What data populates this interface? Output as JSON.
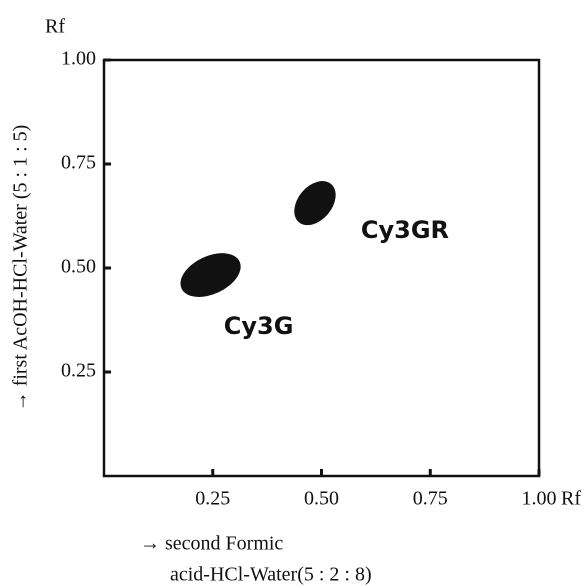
{
  "chart_data": {
    "type": "scatter",
    "x_label": [
      "→ second Formic",
      "acid-HCl-Water(5 : 2 : 8)"
    ],
    "y_label": "→ first AcOH-HCl-Water (5 : 1 : 5)",
    "x_unit": "Rf",
    "y_unit": "Rf",
    "xlim": [
      0,
      1
    ],
    "ylim": [
      0,
      1
    ],
    "xticks": [
      0.25,
      {
        "value": 0.5,
        "label": "0.50"
      },
      0.75,
      {
        "value": 1,
        "label": "1.00"
      }
    ],
    "yticks": [
      0.25,
      {
        "value": 0.5,
        "label": "0.50"
      },
      0.75,
      {
        "value": 1,
        "label": "1.00"
      }
    ],
    "color": "#111111",
    "points": [
      {
        "label": "Cy3G",
        "x": 0.245,
        "y": 0.483
      },
      {
        "label": "Cy3GR",
        "x": 0.485,
        "y": 0.656
      }
    ]
  }
}
